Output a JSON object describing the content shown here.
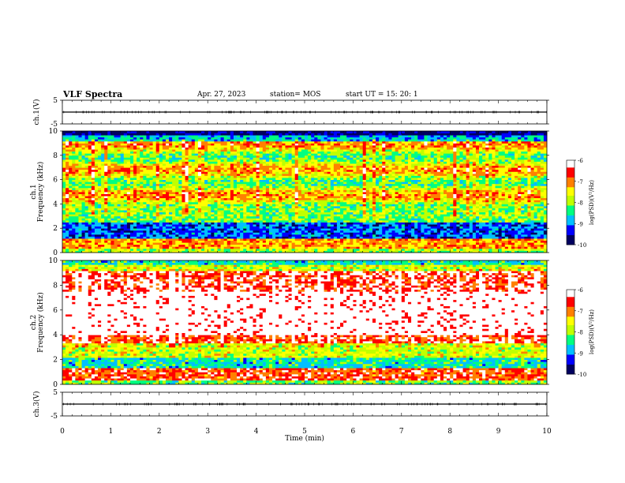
{
  "header": {
    "title": "VLF Spectra",
    "date": "Apr. 27, 2023",
    "station": "station= MOS",
    "start": "start  UT =   15: 20: 1"
  },
  "chart_data": [
    {
      "type": "line",
      "panel": "ch1-waveform",
      "ylabel": "ch.1(V)",
      "yticks": [
        "5",
        "-5"
      ],
      "ylim": [
        -5,
        5
      ],
      "x": [
        0,
        10
      ],
      "values": [
        0,
        0
      ]
    },
    {
      "type": "heatmap",
      "panel": "ch1-spectrogram",
      "ylabel": "ch.1\nFrequency (kHz)",
      "ylim": [
        0,
        10
      ],
      "yticks": [
        "0",
        "2",
        "4",
        "6",
        "8",
        "10"
      ],
      "xlim": [
        0,
        10
      ],
      "colorbar": {
        "label": "log(PSD)(V²/Hz)",
        "range": [
          -10,
          -6
        ],
        "ticks": [
          "-6",
          "-7",
          "-8",
          "-9",
          "-10"
        ]
      }
    },
    {
      "type": "heatmap",
      "panel": "ch2-spectrogram",
      "ylabel": "ch.2\nFrequency (kHz)",
      "ylim": [
        0,
        10
      ],
      "yticks": [
        "0",
        "2",
        "4",
        "6",
        "8",
        "10"
      ],
      "xlim": [
        0,
        10
      ],
      "colorbar": {
        "label": "log(PSD)(V²/Hz)",
        "range": [
          -10,
          -6
        ],
        "ticks": [
          "-6",
          "-7",
          "-8",
          "-9",
          "-10"
        ]
      }
    },
    {
      "type": "line",
      "panel": "ch3-waveform",
      "ylabel": "ch.3(V)",
      "yticks": [
        "5",
        "-5"
      ],
      "ylim": [
        -5,
        5
      ],
      "x": [
        0,
        10
      ],
      "values": [
        0,
        0
      ]
    }
  ],
  "xaxis": {
    "label": "Time  (min)",
    "ticks": [
      "0",
      "1",
      "2",
      "3",
      "4",
      "5",
      "6",
      "7",
      "8",
      "9",
      "10"
    ],
    "range": [
      0,
      10
    ]
  },
  "colors": {
    "ramp": [
      "#000060",
      "#0000ff",
      "#00c0ff",
      "#00ff80",
      "#c0ff00",
      "#ffff00",
      "#ff8000",
      "#ff0000",
      "#ffffff"
    ]
  }
}
